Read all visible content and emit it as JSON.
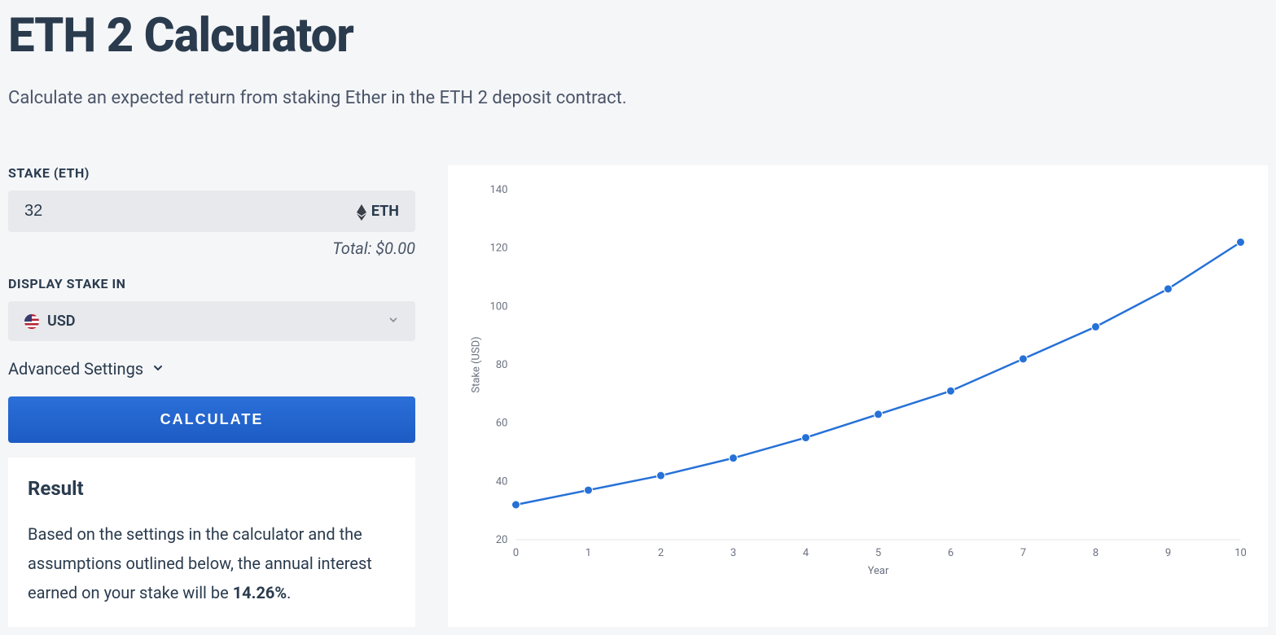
{
  "header": {
    "title": "ETH 2 Calculator",
    "subtitle": "Calculate an expected return from staking Ether in the ETH 2 deposit contract."
  },
  "form": {
    "stake": {
      "label": "STAKE (ETH)",
      "value": "32",
      "unit": "ETH",
      "total_prefix": "Total: ",
      "total_value": "$0.00"
    },
    "display_currency": {
      "label": "DISPLAY STAKE IN",
      "selected": "USD"
    },
    "advanced_label": "Advanced Settings",
    "calculate_label": "CALCULATE"
  },
  "result": {
    "title": "Result",
    "text_before": "Based on the settings in the calculator and the assumptions outlined below, the annual interest earned on your stake will be ",
    "rate": "14.26%",
    "text_after": "."
  },
  "chart": {
    "type": "line",
    "x_label": "Year",
    "y_label": "Stake (USD)",
    "x_values": [
      0,
      1,
      2,
      3,
      4,
      5,
      6,
      7,
      8,
      9,
      10
    ],
    "y_values": [
      32,
      37,
      42,
      48,
      55,
      63,
      71,
      82,
      93,
      106,
      122
    ],
    "x_ticks": [
      0,
      1,
      2,
      3,
      4,
      5,
      6,
      7,
      8,
      9,
      10
    ],
    "y_ticks": [
      20,
      40,
      60,
      80,
      100,
      120,
      140
    ],
    "xlim": [
      0,
      10
    ],
    "ylim": [
      20,
      140
    ],
    "line_color": "#2671d8",
    "point_color": "#2671d8",
    "point_radius": 5,
    "grid_color": "#e5e7eb",
    "background_color": "#ffffff",
    "axis_font_size": 13,
    "axis_font_color": "#6b7280"
  }
}
